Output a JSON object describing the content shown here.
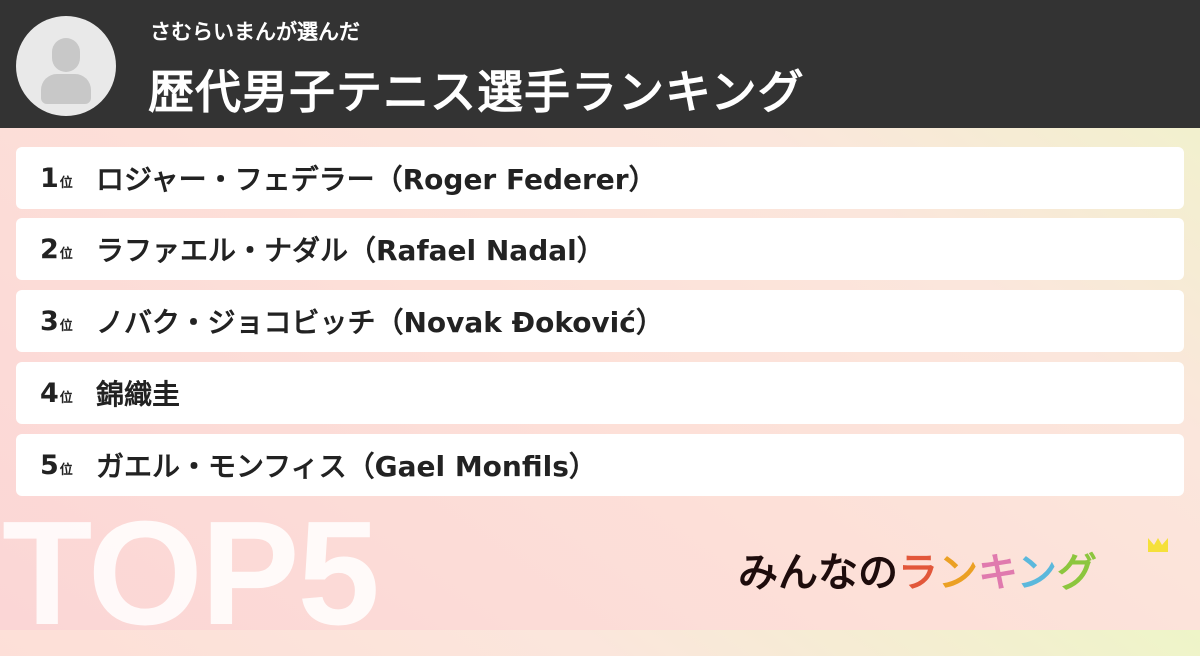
{
  "header": {
    "subtitle": "さむらいまんが選んだ",
    "title": "歴代男子テニス選手ランキング"
  },
  "rank_suffix": "位",
  "items": [
    {
      "rank": "1",
      "name": "ロジャー・フェデラー（Roger Federer）"
    },
    {
      "rank": "2",
      "name": "ラファエル・ナダル（Rafael Nadal）"
    },
    {
      "rank": "3",
      "name": "ノバク・ジョコビッチ（Novak Đoković）"
    },
    {
      "rank": "4",
      "name": "錦織圭"
    },
    {
      "rank": "5",
      "name": "ガエル・モンフィス（Gael Monfils）"
    }
  ],
  "badge": "TOP5",
  "logo": {
    "part1": "みんなの",
    "chars": [
      "ラ",
      "ン",
      "キ",
      "ン",
      "グ"
    ],
    "colors": [
      "#e2573a",
      "#eba024",
      "#e07aae",
      "#5bb8dc",
      "#8cc63e"
    ]
  }
}
